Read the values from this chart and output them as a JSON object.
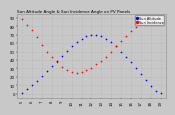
{
  "title": "Sun Altitude Angle & Sun Incidence Angle on PV Panels",
  "title_fontsize": 3.0,
  "background_color": "#c8c8c8",
  "plot_background": "#c8c8c8",
  "grid_color": "#aaaaaa",
  "xlim": [
    4.5,
    19.5
  ],
  "ylim": [
    -5,
    95
  ],
  "yticks": [
    0,
    10,
    20,
    30,
    40,
    50,
    60,
    70,
    80,
    90
  ],
  "ytick_labels": [
    "0",
    "10",
    "20",
    "30",
    "40",
    "50",
    "60",
    "70",
    "80",
    "90"
  ],
  "xtick_labels": [
    "5",
    "6",
    "7",
    "8",
    "9",
    "10",
    "11",
    "12",
    "13",
    "14",
    "15",
    "16",
    "17",
    "18",
    "19"
  ],
  "xtick_positions": [
    5,
    6,
    7,
    8,
    9,
    10,
    11,
    12,
    13,
    14,
    15,
    16,
    17,
    18,
    19
  ],
  "sun_altitude_x": [
    5.0,
    5.5,
    6.0,
    6.5,
    7.0,
    7.5,
    8.0,
    8.5,
    9.0,
    9.5,
    10.0,
    10.5,
    11.0,
    11.5,
    12.0,
    12.5,
    13.0,
    13.5,
    14.0,
    14.5,
    15.0,
    15.5,
    16.0,
    16.5,
    17.0,
    17.5,
    18.0,
    18.5,
    19.0
  ],
  "sun_altitude_y": [
    1,
    5,
    10,
    15,
    21,
    27,
    33,
    39,
    45,
    51,
    56,
    61,
    65,
    68,
    70,
    70,
    68,
    65,
    61,
    56,
    50,
    44,
    37,
    30,
    23,
    16,
    9,
    3,
    1
  ],
  "sun_incidence_x": [
    5.0,
    5.5,
    6.0,
    6.5,
    7.0,
    7.5,
    8.0,
    8.5,
    9.0,
    9.5,
    10.0,
    10.5,
    11.0,
    11.5,
    12.0,
    12.5,
    13.0,
    13.5,
    14.0,
    14.5,
    15.0,
    15.5,
    16.0,
    16.5,
    17.0,
    17.5,
    18.0,
    18.5,
    19.0
  ],
  "sun_incidence_y": [
    88,
    82,
    75,
    67,
    58,
    50,
    43,
    37,
    32,
    28,
    26,
    25,
    26,
    28,
    31,
    35,
    39,
    44,
    50,
    56,
    62,
    68,
    74,
    79,
    84,
    87,
    89,
    89,
    89
  ],
  "altitude_color": "#0000ff",
  "incidence_color": "#ff0000",
  "legend_altitude": "Sun Altitude",
  "legend_incidence": "Sun Incidence",
  "marker_size": 1.5,
  "tick_fontsize": 2.8,
  "legend_fontsize": 2.5
}
